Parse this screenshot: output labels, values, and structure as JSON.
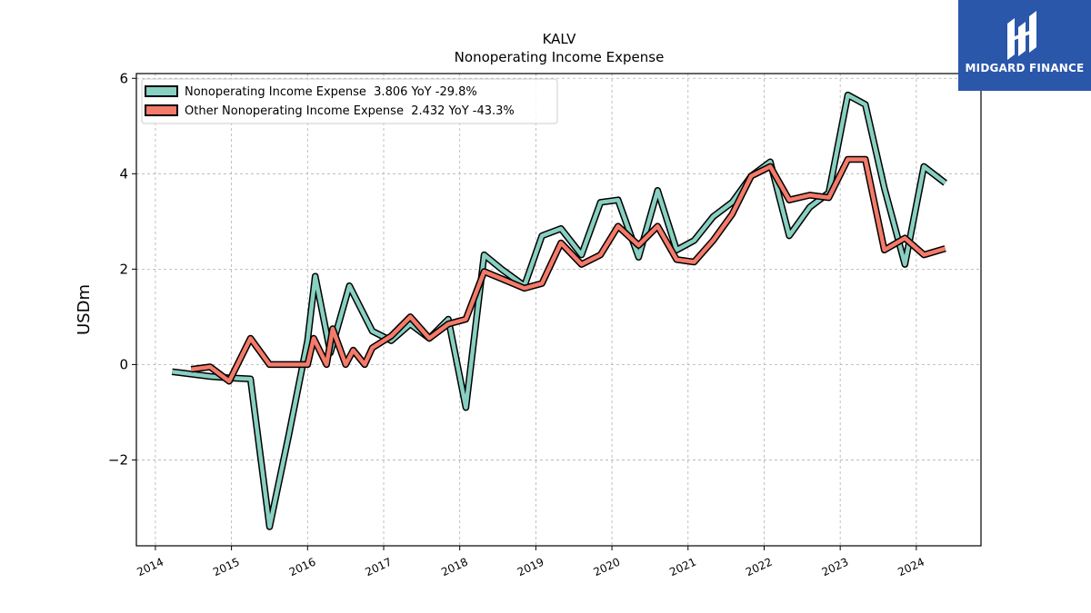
{
  "brand": {
    "name": "MIDGARD FINANCE",
    "background": "#2b57ab",
    "icon": "midgard-logo-icon"
  },
  "chart_data": {
    "type": "line",
    "title": "KALV",
    "subtitle": "Nonoperating Income Expense",
    "xlabel": "",
    "ylabel": "USDm",
    "xlim": [
      2013.75,
      2024.85
    ],
    "ylim": [
      -3.8,
      6.1
    ],
    "x_ticks": [
      2014,
      2015,
      2016,
      2017,
      2018,
      2019,
      2020,
      2021,
      2022,
      2023,
      2024
    ],
    "y_ticks": [
      -2,
      0,
      2,
      4,
      6
    ],
    "y_tick_labels": [
      "−2",
      "0",
      "2",
      "4",
      "6"
    ],
    "grid": true,
    "legend_position": "top-left",
    "series": [
      {
        "name": "Nonoperating Income Expense",
        "legend_label": "Nonoperating Income Expense  3.806 YoY -29.8%",
        "color": "#88d0c1",
        "x": [
          2014.22,
          2014.72,
          2014.97,
          2015.25,
          2015.5,
          2015.75,
          2016.0,
          2016.1,
          2016.3,
          2016.55,
          2016.85,
          2017.1,
          2017.35,
          2017.6,
          2017.85,
          2018.08,
          2018.32,
          2018.55,
          2018.85,
          2019.08,
          2019.33,
          2019.6,
          2019.85,
          2020.08,
          2020.35,
          2020.6,
          2020.85,
          2021.08,
          2021.33,
          2021.58,
          2021.83,
          2022.08,
          2022.33,
          2022.6,
          2022.85,
          2023.1,
          2023.33,
          2023.58,
          2023.85,
          2024.1,
          2024.38
        ],
        "y": [
          -0.15,
          -0.25,
          -0.28,
          -0.3,
          -3.4,
          -1.5,
          0.5,
          1.85,
          0.25,
          1.65,
          0.7,
          0.5,
          0.85,
          0.55,
          0.95,
          -0.9,
          2.3,
          2.0,
          1.65,
          2.7,
          2.85,
          2.3,
          3.4,
          3.45,
          2.25,
          3.65,
          2.4,
          2.6,
          3.1,
          3.4,
          3.95,
          4.25,
          2.7,
          3.3,
          3.6,
          5.65,
          5.45,
          3.7,
          2.1,
          4.15,
          3.806
        ]
      },
      {
        "name": "Other Nonoperating Income Expense",
        "legend_label": "Other Nonoperating Income Expense  2.432 YoY -43.3%",
        "color": "#f47a6a",
        "x": [
          2014.47,
          2014.72,
          2014.97,
          2015.25,
          2015.5,
          2015.75,
          2016.0,
          2016.08,
          2016.25,
          2016.33,
          2016.5,
          2016.6,
          2016.75,
          2016.85,
          2017.1,
          2017.35,
          2017.6,
          2017.85,
          2018.08,
          2018.32,
          2018.55,
          2018.85,
          2019.08,
          2019.33,
          2019.6,
          2019.85,
          2020.08,
          2020.35,
          2020.6,
          2020.85,
          2021.08,
          2021.33,
          2021.58,
          2021.83,
          2022.08,
          2022.33,
          2022.6,
          2022.85,
          2023.1,
          2023.33,
          2023.58,
          2023.85,
          2024.1,
          2024.38
        ],
        "y": [
          -0.1,
          -0.05,
          -0.35,
          0.55,
          0.0,
          0.0,
          0.0,
          0.55,
          0.0,
          0.75,
          0.0,
          0.3,
          0.0,
          0.35,
          0.6,
          1.0,
          0.55,
          0.85,
          0.95,
          1.95,
          1.8,
          1.6,
          1.7,
          2.55,
          2.1,
          2.3,
          2.9,
          2.5,
          2.9,
          2.2,
          2.15,
          2.6,
          3.15,
          3.95,
          4.15,
          3.45,
          3.55,
          3.5,
          4.3,
          4.3,
          2.4,
          2.65,
          2.3,
          2.432
        ]
      }
    ]
  }
}
